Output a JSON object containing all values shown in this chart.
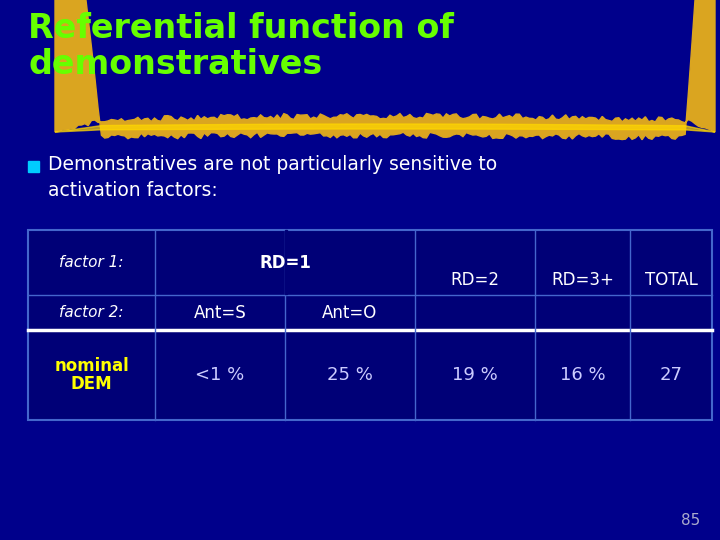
{
  "title_line1": "Referential function of",
  "title_line2": "demonstratives",
  "title_color": "#66ff00",
  "bg_color": "#00008B",
  "bullet_text_line1": "Demonstratives are not particularly sensitive to",
  "bullet_text_line2": "activation factors:",
  "bullet_color": "#00ccff",
  "body_text_color": "#ffffff",
  "table_border_color": "#4466cc",
  "row_label_color": "#ffff00",
  "header_italic_color": "#ffffff",
  "header_normal_color": "#ffffff",
  "data_color": "#ccccff",
  "page_num": "85",
  "page_num_color": "#aaaacc",
  "table_bg_color": "#000077",
  "gold_color": "#DAA520",
  "gold_highlight": "#FFD700"
}
